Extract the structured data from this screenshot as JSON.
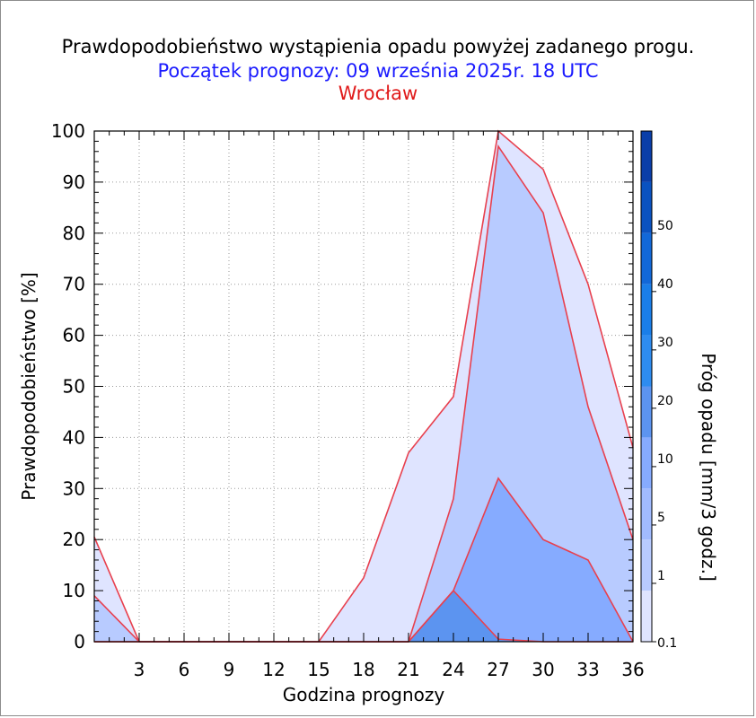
{
  "header": {
    "title": "Prawdopodobieństwo wystąpienia opadu powyżej zadanego progu.",
    "subtitle": "Początek prognozy: 09 września 2025r. 18 UTC",
    "location": "Wrocław"
  },
  "colors": {
    "subtitle": "#1a1aff",
    "location": "#e01a1a",
    "series_line": "#e8404e"
  },
  "chart_data": {
    "type": "area",
    "xlabel": "Godzina prognozy",
    "ylabel": "Prawdopodobieństwo [%]",
    "x": [
      0,
      3,
      6,
      9,
      12,
      15,
      18,
      21,
      24,
      27,
      30,
      33,
      36
    ],
    "xticks": [
      "3",
      "6",
      "9",
      "12",
      "15",
      "18",
      "21",
      "24",
      "27",
      "30",
      "33",
      "36"
    ],
    "xlim": [
      0,
      36
    ],
    "ylim": [
      0,
      100
    ],
    "yticks": [
      "0",
      "10",
      "20",
      "30",
      "40",
      "50",
      "60",
      "70",
      "80",
      "90",
      "100"
    ],
    "grid": true,
    "series": [
      {
        "threshold": "0.1",
        "color": "#dfe4ff",
        "values": [
          20.5,
          0,
          0,
          0,
          0,
          0,
          12.5,
          37,
          48,
          100,
          92.5,
          70,
          38
        ]
      },
      {
        "threshold": "1",
        "color": "#b8cbff",
        "values": [
          9,
          0,
          0,
          0,
          0,
          0,
          0,
          0,
          28,
          97,
          84,
          46,
          20
        ]
      },
      {
        "threshold": "5",
        "color": "#86abff",
        "values": [
          0,
          0,
          0,
          0,
          0,
          0,
          0,
          0,
          10,
          32,
          20,
          16,
          0
        ]
      },
      {
        "threshold": "10",
        "color": "#5c94f0",
        "values": [
          0,
          0,
          0,
          0,
          0,
          0,
          0,
          0,
          10,
          0.5,
          0,
          0,
          0
        ]
      }
    ],
    "colorbar": {
      "label": "Próg opadu [mm/3 godz.]",
      "labels": [
        "0.1",
        "1",
        "5",
        "10",
        "20",
        "30",
        "40",
        "50"
      ],
      "colors": [
        "#dfe4ff",
        "#b8cbff",
        "#a1bbff",
        "#86abff",
        "#5c94f0",
        "#2e8cf0",
        "#1a7ee8",
        "#1268d8",
        "#0a52c0",
        "#0a3ea8"
      ]
    }
  }
}
